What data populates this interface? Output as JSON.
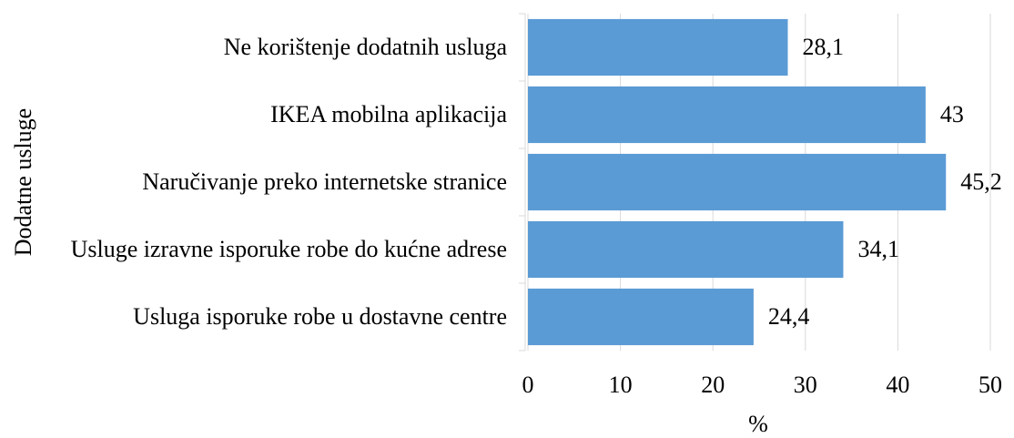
{
  "chart_data": {
    "type": "barh",
    "categories": [
      "Ne korištenje dodatnih usluga",
      "IKEA mobilna aplikacija",
      "Naručivanje preko internetske stranice",
      "Usluge izravne isporuke robe do kućne adrese",
      "Usluga isporuke robe u dostavne centre"
    ],
    "values": [
      28.1,
      43,
      45.2,
      34.1,
      24.4
    ],
    "value_labels": [
      "28,1",
      "43",
      "45,2",
      "34,1",
      "24,4"
    ],
    "color": "#5b9bd5",
    "xlim": [
      0,
      50
    ],
    "xticks": [
      0,
      10,
      20,
      30,
      40,
      50
    ],
    "grid": true,
    "x_label": "%",
    "y_label": "Dodatne usluge"
  }
}
